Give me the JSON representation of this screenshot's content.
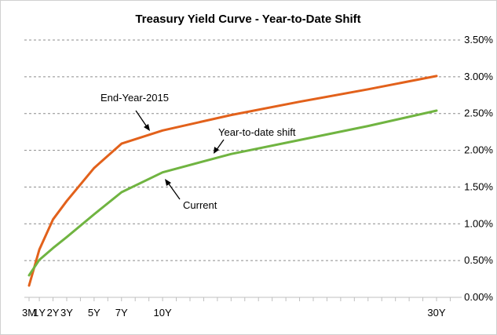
{
  "chart_data": {
    "type": "line",
    "title": "Treasury Yield Curve  - Year-to-Date Shift",
    "xlabel": "",
    "ylabel": "",
    "x_unit": "years to maturity",
    "x_tick_labels": [
      {
        "x": 0.25,
        "label": "3M"
      },
      {
        "x": 1,
        "label": "1Y"
      },
      {
        "x": 2,
        "label": "2Y"
      },
      {
        "x": 3,
        "label": "3Y"
      },
      {
        "x": 5,
        "label": "5Y"
      },
      {
        "x": 7,
        "label": "7Y"
      },
      {
        "x": 10,
        "label": "10Y"
      },
      {
        "x": 30,
        "label": "30Y"
      }
    ],
    "xlim": [
      0,
      31
    ],
    "ylim": [
      0,
      3.5
    ],
    "y_ticks": [
      0,
      0.5,
      1.0,
      1.5,
      2.0,
      2.5,
      3.0,
      3.5
    ],
    "y_tick_labels": [
      "0.00%",
      "0.50%",
      "1.00%",
      "1.50%",
      "2.00%",
      "2.50%",
      "3.00%",
      "3.50%"
    ],
    "grid": "horizontal dashed",
    "series": [
      {
        "name": "End-Year-2015",
        "color": "#E2611B",
        "x": [
          0.25,
          1,
          2,
          3,
          5,
          7,
          10,
          15,
          20,
          25,
          30
        ],
        "y": [
          0.16,
          0.65,
          1.06,
          1.31,
          1.76,
          2.09,
          2.27,
          2.48,
          2.66,
          2.83,
          3.01
        ]
      },
      {
        "name": "Current",
        "color": "#70B441",
        "x": [
          0.25,
          1,
          2,
          3,
          5,
          7,
          10,
          15,
          20,
          25,
          30
        ],
        "y": [
          0.3,
          0.51,
          0.67,
          0.82,
          1.13,
          1.43,
          1.7,
          1.95,
          2.14,
          2.33,
          2.54
        ]
      }
    ],
    "annotations": [
      {
        "text": "End-Year-2015"
      },
      {
        "text": "Year-to-date shift"
      },
      {
        "text": "Current"
      }
    ]
  }
}
